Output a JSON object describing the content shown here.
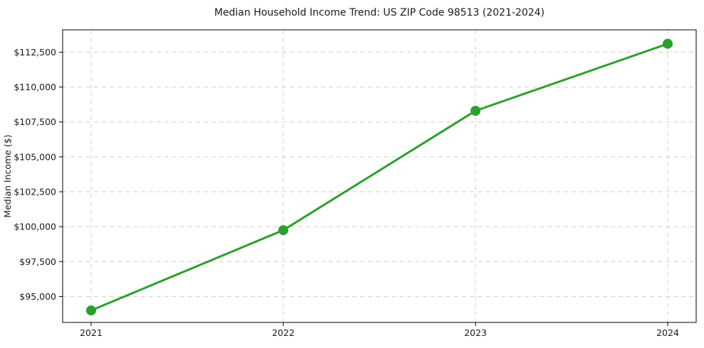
{
  "chart_data": {
    "type": "line",
    "title": "Median Household Income Trend: US ZIP Code 98513 (2021-2024)",
    "xlabel": "",
    "ylabel": "Median Income ($)",
    "categories": [
      "2021",
      "2022",
      "2023",
      "2024"
    ],
    "values": [
      94000,
      99750,
      108300,
      113100
    ],
    "yticks": [
      {
        "value": 95000,
        "label": "$95,000"
      },
      {
        "value": 97500,
        "label": "$97,500"
      },
      {
        "value": 100000,
        "label": "$100,000"
      },
      {
        "value": 102500,
        "label": "$102,500"
      },
      {
        "value": 105000,
        "label": "$105,000"
      },
      {
        "value": 107500,
        "label": "$107,500"
      },
      {
        "value": 110000,
        "label": "$110,000"
      },
      {
        "value": 112500,
        "label": "$112,500"
      }
    ],
    "ylim": [
      93140,
      114100
    ],
    "grid": "dashed",
    "legend": "none",
    "line_color": "#2ca02c",
    "marker_color": "#2ca02c",
    "marker": "circle",
    "background_color": "#ffffff"
  }
}
